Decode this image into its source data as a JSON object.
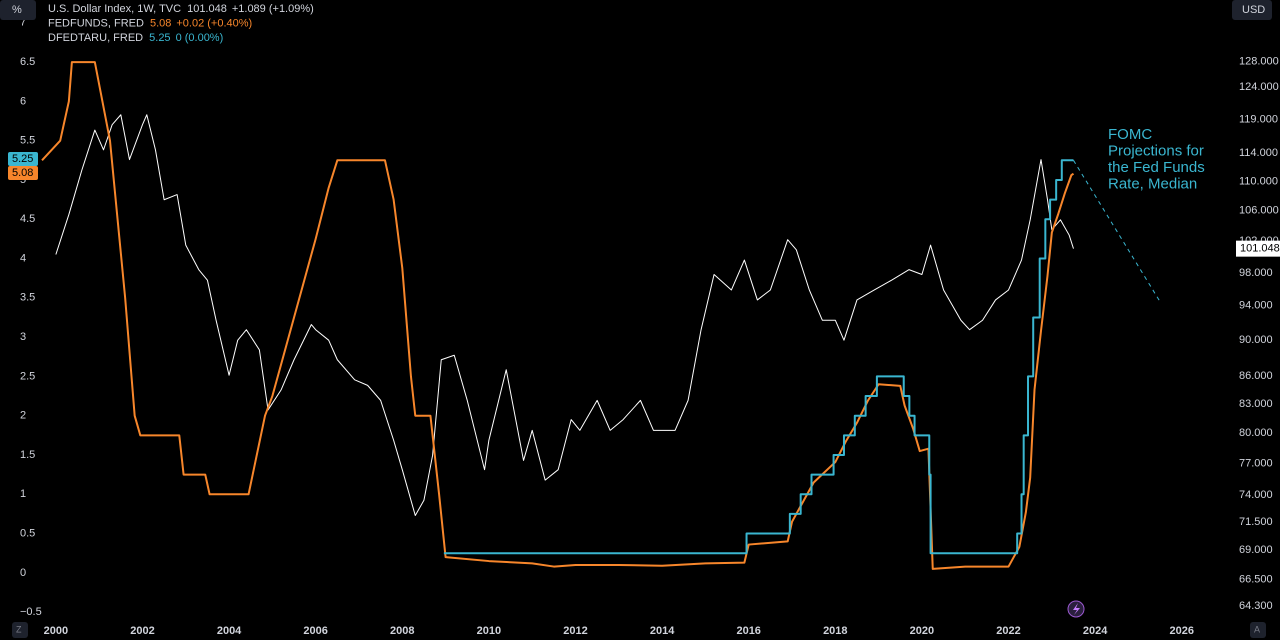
{
  "chart_data": {
    "type": "line",
    "xlim": [
      1998.71,
      2027.23
    ],
    "xticks": [
      2000,
      2002,
      2004,
      2006,
      2008,
      2010,
      2012,
      2014,
      2016,
      2018,
      2020,
      2022,
      2024,
      2026
    ],
    "ylim": [
      -0.6,
      7.29
    ],
    "yticks": [
      {
        "value": -0.5,
        "label": "−0.5"
      },
      0,
      0.5,
      1,
      1.5,
      2,
      2.5,
      3,
      3.5,
      4,
      4.5,
      5,
      5.5,
      6,
      6.5,
      7
    ],
    "y2lim": [
      63.17,
      138.4
    ],
    "y2log": true,
    "y2ticks": [
      {
        "value": 64.3,
        "label": "64.300"
      },
      {
        "value": 66.5,
        "label": "66.500"
      },
      {
        "value": 69,
        "label": "69.000"
      },
      {
        "value": 71.5,
        "label": "71.500"
      },
      {
        "value": 74,
        "label": "74.000"
      },
      {
        "value": 77,
        "label": "77.000"
      },
      {
        "value": 80,
        "label": "80.000"
      },
      {
        "value": 83,
        "label": "83.000"
      },
      {
        "value": 86,
        "label": "86.000"
      },
      {
        "value": 90,
        "label": "90.000"
      },
      {
        "value": 94,
        "label": "94.000"
      },
      {
        "value": 98,
        "label": "98.000"
      },
      {
        "value": 102,
        "label": "102.000"
      },
      {
        "value": 106,
        "label": "106.000"
      },
      {
        "value": 110,
        "label": "110.000"
      },
      {
        "value": 114,
        "label": "114.000"
      },
      {
        "value": 119,
        "label": "119.000"
      },
      {
        "value": 124,
        "label": "124.000"
      },
      {
        "value": 128,
        "label": "128.000"
      }
    ],
    "grid": false,
    "buttons": {
      "percent": "%",
      "currency": "USD",
      "zoom": "Z",
      "auto": "A"
    },
    "series": [
      {
        "name": "U.S. Dollar Index, 1W, TVC",
        "color": "#ffffff",
        "axis": "y2",
        "step": false,
        "legend_values": [
          "101.048",
          "+1.089 (+1.09%)"
        ],
        "legend_color": "#d1d4dc",
        "x": [
          2000.0,
          2000.3,
          2000.6,
          2000.9,
          2001.1,
          2001.3,
          2001.5,
          2001.7,
          2002.0,
          2002.1,
          2002.3,
          2002.5,
          2002.8,
          2003.0,
          2003.3,
          2003.5,
          2003.7,
          2004.0,
          2004.2,
          2004.4,
          2004.7,
          2004.9,
          2005.2,
          2005.5,
          2005.9,
          2006.0,
          2006.3,
          2006.5,
          2006.9,
          2007.2,
          2007.5,
          2007.8,
          2008.0,
          2008.3,
          2008.5,
          2008.7,
          2008.9,
          2009.2,
          2009.5,
          2009.9,
          2010.0,
          2010.4,
          2010.8,
          2011.0,
          2011.3,
          2011.6,
          2011.9,
          2012.1,
          2012.5,
          2012.8,
          2013.1,
          2013.5,
          2013.8,
          2014.3,
          2014.6,
          2014.9,
          2015.2,
          2015.6,
          2015.9,
          2016.2,
          2016.5,
          2016.9,
          2017.1,
          2017.4,
          2017.7,
          2018.0,
          2018.2,
          2018.5,
          2018.9,
          2019.3,
          2019.7,
          2020.0,
          2020.2,
          2020.5,
          2020.9,
          2021.1,
          2021.4,
          2021.7,
          2022.0,
          2022.3,
          2022.5,
          2022.75,
          2022.9,
          2023.0,
          2023.2,
          2023.4,
          2023.5
        ],
        "values": [
          100.3,
          105.5,
          111.6,
          117.4,
          114.5,
          118.2,
          119.7,
          113.1,
          118.2,
          119.7,
          114.5,
          107.5,
          108.2,
          101.5,
          98.4,
          97.1,
          92.3,
          86.1,
          90.0,
          91.2,
          88.9,
          82.4,
          84.5,
          87.8,
          91.8,
          91.2,
          90.0,
          87.8,
          85.6,
          85.0,
          83.4,
          79.3,
          76.4,
          72.1,
          73.5,
          77.8,
          87.8,
          88.3,
          83.4,
          76.4,
          79.3,
          86.7,
          77.3,
          80.3,
          75.4,
          76.4,
          81.4,
          80.3,
          83.4,
          80.3,
          81.4,
          83.4,
          80.3,
          80.3,
          83.4,
          91.2,
          97.8,
          95.9,
          99.6,
          94.7,
          95.9,
          102.2,
          100.9,
          95.9,
          92.3,
          92.3,
          90.0,
          94.7,
          95.9,
          97.1,
          98.4,
          97.8,
          101.5,
          95.9,
          92.3,
          91.2,
          92.3,
          94.7,
          95.9,
          99.6,
          104.8,
          113.1,
          107.5,
          103.5,
          104.8,
          102.8,
          101.048
        ]
      },
      {
        "name": "FEDFUNDS, FRED",
        "color": "#f7862b",
        "axis": "y",
        "step": false,
        "legend_values": [
          "5.08",
          "+0.02 (+0.40%)"
        ],
        "legend_color": "#f7862b",
        "x": [
          1999.68,
          2000.1,
          2000.3,
          2000.37,
          2000.9,
          2001.25,
          2001.6,
          2001.82,
          2001.95,
          2002.85,
          2002.95,
          2003.45,
          2003.55,
          2004.45,
          2004.83,
          2005.0,
          2005.5,
          2006.0,
          2006.3,
          2006.5,
          2007.6,
          2007.8,
          2008.0,
          2008.2,
          2008.3,
          2008.65,
          2008.85,
          2009.0,
          2010.0,
          2011.0,
          2011.5,
          2012.0,
          2013.0,
          2014.0,
          2015.0,
          2015.9,
          2016.0,
          2016.9,
          2017.0,
          2017.25,
          2017.5,
          2018.0,
          2018.25,
          2018.5,
          2018.75,
          2019.0,
          2019.5,
          2019.6,
          2019.8,
          2019.95,
          2020.15,
          2020.25,
          2021.0,
          2022.0,
          2022.25,
          2022.4,
          2022.5,
          2022.6,
          2022.75,
          2022.9,
          2023.0,
          2023.15,
          2023.3,
          2023.45,
          2023.5
        ],
        "values": [
          5.25,
          5.5,
          6.0,
          6.5,
          6.5,
          5.5,
          3.5,
          2.0,
          1.75,
          1.75,
          1.25,
          1.25,
          1.0,
          1.0,
          2.0,
          2.25,
          3.25,
          4.25,
          4.9,
          5.25,
          5.25,
          4.75,
          3.88,
          2.5,
          2.0,
          2.0,
          1.0,
          0.2,
          0.15,
          0.12,
          0.08,
          0.1,
          0.1,
          0.09,
          0.12,
          0.13,
          0.36,
          0.4,
          0.65,
          0.9,
          1.15,
          1.41,
          1.68,
          1.91,
          2.19,
          2.4,
          2.38,
          2.13,
          1.83,
          1.55,
          1.58,
          0.05,
          0.08,
          0.08,
          0.33,
          0.77,
          1.21,
          2.33,
          3.08,
          3.78,
          4.33,
          4.57,
          4.83,
          5.06,
          5.08
        ]
      },
      {
        "name": "DFEDTARU, FRED",
        "color": "#3ab6d0",
        "axis": "y",
        "step": true,
        "legend_values": [
          "5.25",
          "0 (0.00%)"
        ],
        "legend_color": "#3ab6d0",
        "x": [
          2008.96,
          2015.95,
          2016.95,
          2017.2,
          2017.45,
          2017.96,
          2018.2,
          2018.45,
          2018.7,
          2018.96,
          2019.58,
          2019.71,
          2019.83,
          2020.17,
          2020.2,
          2022.2,
          2022.3,
          2022.35,
          2022.45,
          2022.57,
          2022.72,
          2022.85,
          2022.96,
          2023.1,
          2023.23,
          2023.35,
          2023.5
        ],
        "values": [
          0.25,
          0.5,
          0.75,
          1.0,
          1.25,
          1.5,
          1.75,
          2.0,
          2.25,
          2.5,
          2.25,
          2.0,
          1.75,
          1.25,
          0.25,
          0.5,
          1.0,
          1.75,
          2.5,
          3.25,
          4.0,
          4.5,
          4.75,
          5.0,
          5.25,
          5.25,
          5.25
        ]
      }
    ],
    "projection": {
      "text": [
        "FOMC",
        "Projections for",
        "the Fed Funds",
        "Rate, Median"
      ],
      "color": "#3ab6d0",
      "x": [
        2023.5,
        2025.5
      ],
      "values": [
        5.25,
        3.45
      ]
    }
  }
}
